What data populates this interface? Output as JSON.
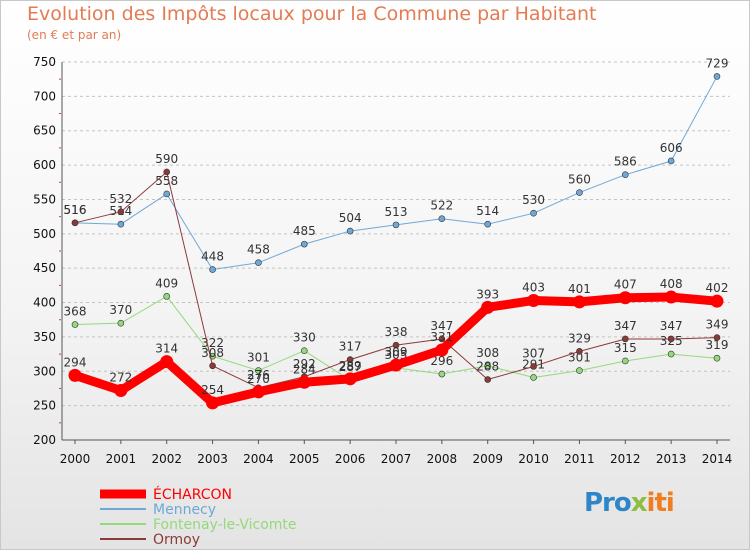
{
  "title": "Evolution des Impôts locaux pour la Commune par Habitant",
  "subtitle": "(en € et par an)",
  "logo": {
    "part1": "Pro",
    "part2": "x",
    "part3": "iti"
  },
  "chart_data": {
    "type": "line",
    "title": "Evolution des Impôts locaux pour la Commune par Habitant",
    "subtitle": "(en € et par an)",
    "xlabel": "",
    "ylabel": "",
    "x": [
      "2000",
      "2001",
      "2002",
      "2003",
      "2004",
      "2005",
      "2006",
      "2007",
      "2008",
      "2009",
      "2010",
      "2011",
      "2012",
      "2013",
      "2014"
    ],
    "ylim": [
      200,
      750
    ],
    "yticks": [
      200,
      250,
      300,
      350,
      400,
      450,
      500,
      550,
      600,
      650,
      700,
      750
    ],
    "grid": "horizontal dashed",
    "legend_position": "bottom-left",
    "series": [
      {
        "name": "Fontenay-le-Vicomte",
        "color": "#94d97a",
        "width": 1,
        "values": [
          368,
          370,
          409,
          322,
          301,
          330,
          287,
          305,
          296,
          308,
          291,
          301,
          315,
          325,
          319
        ],
        "labels": [
          "368",
          "370",
          "409",
          "322",
          "301",
          "330",
          "287",
          "305",
          "296",
          "308",
          "291",
          "301",
          "315",
          "325",
          "319"
        ]
      },
      {
        "name": "Mennecy",
        "color": "#6fa8d8",
        "width": 1,
        "values": [
          516,
          514,
          558,
          448,
          458,
          485,
          504,
          513,
          522,
          514,
          530,
          560,
          586,
          606,
          729
        ],
        "labels": [
          "516",
          "514",
          "558",
          "448",
          "458",
          "485",
          "504",
          "513",
          "522",
          "514",
          "530",
          "560",
          "586",
          "606",
          "729"
        ]
      },
      {
        "name": "Ormoy",
        "color": "#8b3a3a",
        "width": 1,
        "values": [
          516,
          532,
          590,
          308,
          276,
          292,
          317,
          338,
          347,
          288,
          307,
          329,
          347,
          347,
          349
        ],
        "labels": [
          "516",
          "532",
          "590",
          "308",
          "276",
          "292",
          "317",
          "338",
          "347",
          "288",
          "307",
          "329",
          "347",
          "347",
          "349"
        ]
      },
      {
        "name": "ÉCHARCON",
        "color": "#ff0000",
        "width": 9,
        "values": [
          294,
          272,
          314,
          254,
          270,
          284,
          289,
          309,
          331,
          393,
          403,
          401,
          407,
          408,
          402
        ],
        "labels": [
          "294",
          "272",
          "314",
          "254",
          "270",
          "284",
          "289",
          "309",
          "331",
          "393",
          "403",
          "401",
          "407",
          "408",
          "402"
        ]
      }
    ],
    "legend": [
      "ÉCHARCON",
      "Mennecy",
      "Fontenay-le-Vicomte",
      "Ormoy"
    ]
  }
}
